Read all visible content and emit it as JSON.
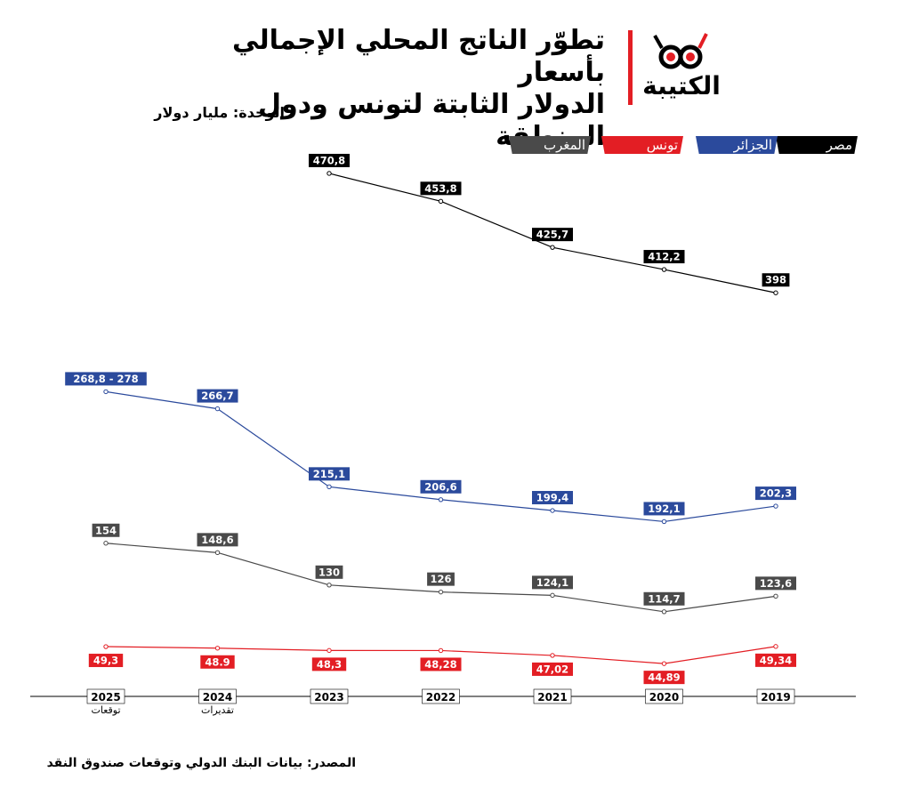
{
  "header": {
    "title_line1": "تطوّر الناتج المحلي الإجمالي بأسعار",
    "title_line2": "الدولار الثابتة لتونس ودول المنطقة",
    "unit": "الوحدة: مليار دولار",
    "logo_text": "الكتيبة"
  },
  "source": "المصدر: بيانات البنك الدولي وتوقعات صندوق النقد",
  "colors": {
    "egypt": "#000000",
    "algeria": "#2b4a9c",
    "morocco": "#4a4a4a",
    "tunisia": "#e31e24",
    "brand_red": "#e31e24"
  },
  "chart_data": {
    "type": "line",
    "categories": [
      "2025",
      "2024",
      "2023",
      "2022",
      "2021",
      "2020",
      "2019"
    ],
    "category_sublabels": [
      "توقعات",
      "تقديرات",
      "",
      "",
      "",
      "",
      ""
    ],
    "legend": [
      {
        "key": "egypt",
        "label": "مصر"
      },
      {
        "key": "algeria",
        "label": "الجزائر"
      },
      {
        "key": "tunisia",
        "label": "تونس"
      },
      {
        "key": "morocco",
        "label": "المغرب"
      }
    ],
    "series": [
      {
        "key": "egypt",
        "name": "مصر",
        "values": [
          null,
          null,
          470.8,
          453.8,
          425.7,
          412.2,
          398
        ],
        "labels": [
          "",
          "",
          "470,8",
          "453,8",
          "425,7",
          "412,2",
          "398"
        ]
      },
      {
        "key": "algeria",
        "name": "الجزائر",
        "values": [
          278,
          266.7,
          215.1,
          206.6,
          199.4,
          192.1,
          202.3
        ],
        "labels": [
          "268,8 - 278",
          "266,7",
          "215,1",
          "206,6",
          "199,4",
          "192,1",
          "202,3"
        ]
      },
      {
        "key": "morocco",
        "name": "المغرب",
        "values": [
          154,
          148.6,
          130,
          126,
          124.1,
          114.7,
          123.6
        ],
        "labels": [
          "154",
          "148,6",
          "130",
          "126",
          "124,1",
          "114,7",
          "123,6"
        ]
      },
      {
        "key": "tunisia",
        "name": "تونس",
        "values": [
          49.3,
          48.9,
          48.3,
          48.28,
          47.02,
          44.89,
          49.34
        ],
        "labels": [
          "49,3",
          "48.9",
          "48,3",
          "48,28",
          "47,02",
          "44,89",
          "49,34"
        ]
      }
    ]
  }
}
